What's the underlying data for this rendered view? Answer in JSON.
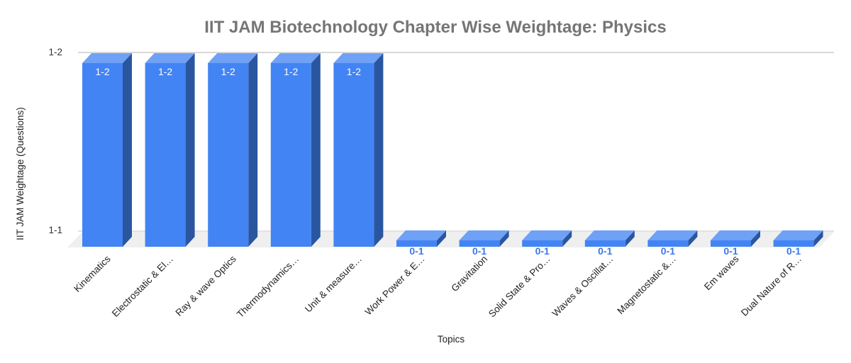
{
  "chart_data": {
    "type": "bar",
    "style": "3d-column",
    "title": "IIT JAM Biotechnology Chapter Wise Weightage: Physics",
    "xlabel": "Topics",
    "ylabel": "IIT JAM Weightage (Questions)",
    "yticks": [
      "1-1",
      "1-2"
    ],
    "categories": [
      "Kinematics",
      "Electrostatic & El…",
      "Ray & wave Optics",
      "Thermodynamics…",
      "Unit & measure…",
      "Work Power & E…",
      "Gravitation",
      "Solid State & Pro…",
      "Waves & Oscillat…",
      "Magnetostatic &…",
      "Em waves",
      "Dual Nature of R…"
    ],
    "values": [
      "1-2",
      "1-2",
      "1-2",
      "1-2",
      "1-2",
      "0-1",
      "0-1",
      "0-1",
      "0-1",
      "0-1",
      "0-1",
      "0-1"
    ],
    "legend": "none",
    "grid": "horizontal",
    "colors": {
      "bar_front": "#4384f4",
      "bar_top": "#6fa1f7",
      "bar_side": "#2a56a0",
      "value_label_tall": "#ffffff",
      "value_label_short": "#3b78e8",
      "title_text": "#757575",
      "axis_text": "#222222",
      "tick_text": "#333333",
      "gridline": "#d9d9d9",
      "floor": "#efefef"
    }
  }
}
